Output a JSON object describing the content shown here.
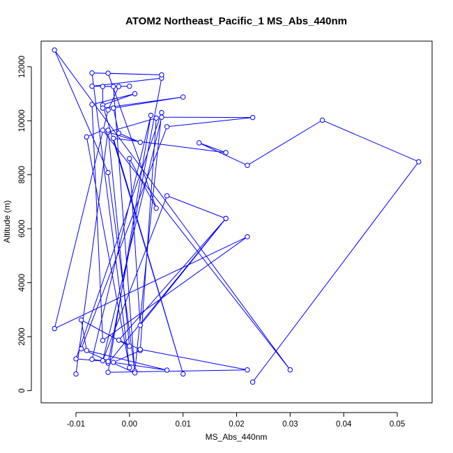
{
  "chart_data": {
    "type": "line",
    "title": "ATOM2 Northeast_Pacific_1 MS_Abs_440nm",
    "xlabel": "MS_Abs_440nm",
    "ylabel": "Altitude (m)",
    "xlim": [
      -0.0165,
      0.0565
    ],
    "ylim": [
      -450,
      12950
    ],
    "x_ticks": [
      -0.01,
      0.0,
      0.01,
      0.02,
      0.03,
      0.04,
      0.05
    ],
    "x_tick_labels": [
      "-0.01",
      "0.00",
      "0.01",
      "0.02",
      "0.03",
      "0.04",
      "0.05"
    ],
    "y_ticks": [
      0,
      2000,
      4000,
      6000,
      8000,
      10000,
      12000
    ],
    "y_tick_labels": [
      "0",
      "2000",
      "4000",
      "6000",
      "8000",
      "10000",
      "12000"
    ],
    "grid": false,
    "legend": null,
    "series": [
      {
        "line_color": "#0000ff",
        "marker": "open-circle",
        "points": [
          [
            0.023,
            320
          ],
          [
            0.054,
            8480
          ],
          [
            0.036,
            10020
          ],
          [
            0.022,
            8350
          ],
          [
            0.013,
            9180
          ],
          [
            0.018,
            8820
          ],
          [
            -0.003,
            9350
          ],
          [
            0.01,
            620
          ],
          [
            -0.005,
            10580
          ],
          [
            0.001,
            11000
          ],
          [
            -0.007,
            10600
          ],
          [
            -0.005,
            1860
          ],
          [
            0.022,
            5700
          ],
          [
            -0.014,
            2300
          ],
          [
            -0.004,
            10400
          ],
          [
            -0.002,
            11270
          ],
          [
            -0.007,
            11280
          ],
          [
            0.006,
            11580
          ],
          [
            -0.004,
            1020
          ],
          [
            0.018,
            6380
          ],
          [
            0.002,
            2420
          ],
          [
            0.0,
            8600
          ],
          [
            0.005,
            6760
          ],
          [
            -0.004,
            11760
          ],
          [
            0.006,
            11700
          ],
          [
            -0.007,
            11770
          ],
          [
            0.0,
            850
          ],
          [
            -0.008,
            9400
          ],
          [
            -0.005,
            9650
          ],
          [
            0.03,
            770
          ],
          [
            -0.014,
            12620
          ],
          [
            -0.004,
            8080
          ],
          [
            0.001,
            720
          ],
          [
            0.006,
            10300
          ],
          [
            -0.01,
            1180
          ],
          [
            -0.004,
            1080
          ],
          [
            -0.003,
            1050
          ],
          [
            0.002,
            1490
          ],
          [
            0.005,
            10100
          ],
          [
            -0.004,
            9580
          ],
          [
            0.002,
            9200
          ],
          [
            -0.002,
            9540
          ],
          [
            -0.003,
            10470
          ],
          [
            0.01,
            10880
          ],
          [
            -0.005,
            10470
          ],
          [
            -0.005,
            11270
          ],
          [
            0.0,
            11280
          ],
          [
            -0.003,
            11270
          ],
          [
            0.001,
            660
          ],
          [
            -0.009,
            1550
          ],
          [
            0.007,
            9780
          ],
          [
            0.023,
            10120
          ],
          [
            0.006,
            10130
          ],
          [
            -0.005,
            1110
          ],
          [
            0.007,
            7220
          ],
          [
            0.018,
            6380
          ],
          [
            -0.002,
            1870
          ],
          [
            0.002,
            1530
          ],
          [
            0.022,
            770
          ],
          [
            -0.004,
            680
          ],
          [
            0.004,
            10200
          ],
          [
            -0.007,
            1160
          ],
          [
            0.007,
            760
          ],
          [
            -0.008,
            1490
          ],
          [
            -0.009,
            2620
          ],
          [
            0.0,
            1650
          ],
          [
            -0.004,
            9650
          ],
          [
            -0.01,
            620
          ]
        ]
      }
    ]
  }
}
